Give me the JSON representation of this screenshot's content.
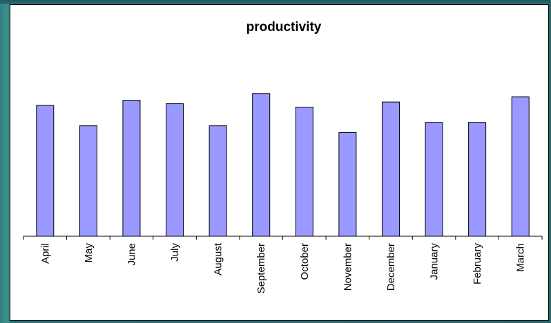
{
  "chart_data": {
    "type": "bar",
    "title": "productivity",
    "xlabel": "",
    "ylabel": "",
    "categories": [
      "April",
      "May",
      "June",
      "July",
      "August",
      "September",
      "October",
      "November",
      "December",
      "January",
      "February",
      "March"
    ],
    "values": [
      77,
      65,
      80,
      78,
      65,
      84,
      76,
      61,
      79,
      67,
      67,
      82
    ],
    "ylim": [
      0,
      120
    ],
    "grid": false,
    "legend": "none",
    "bar_color": "#9999ff",
    "bar_stroke": "#000000"
  }
}
